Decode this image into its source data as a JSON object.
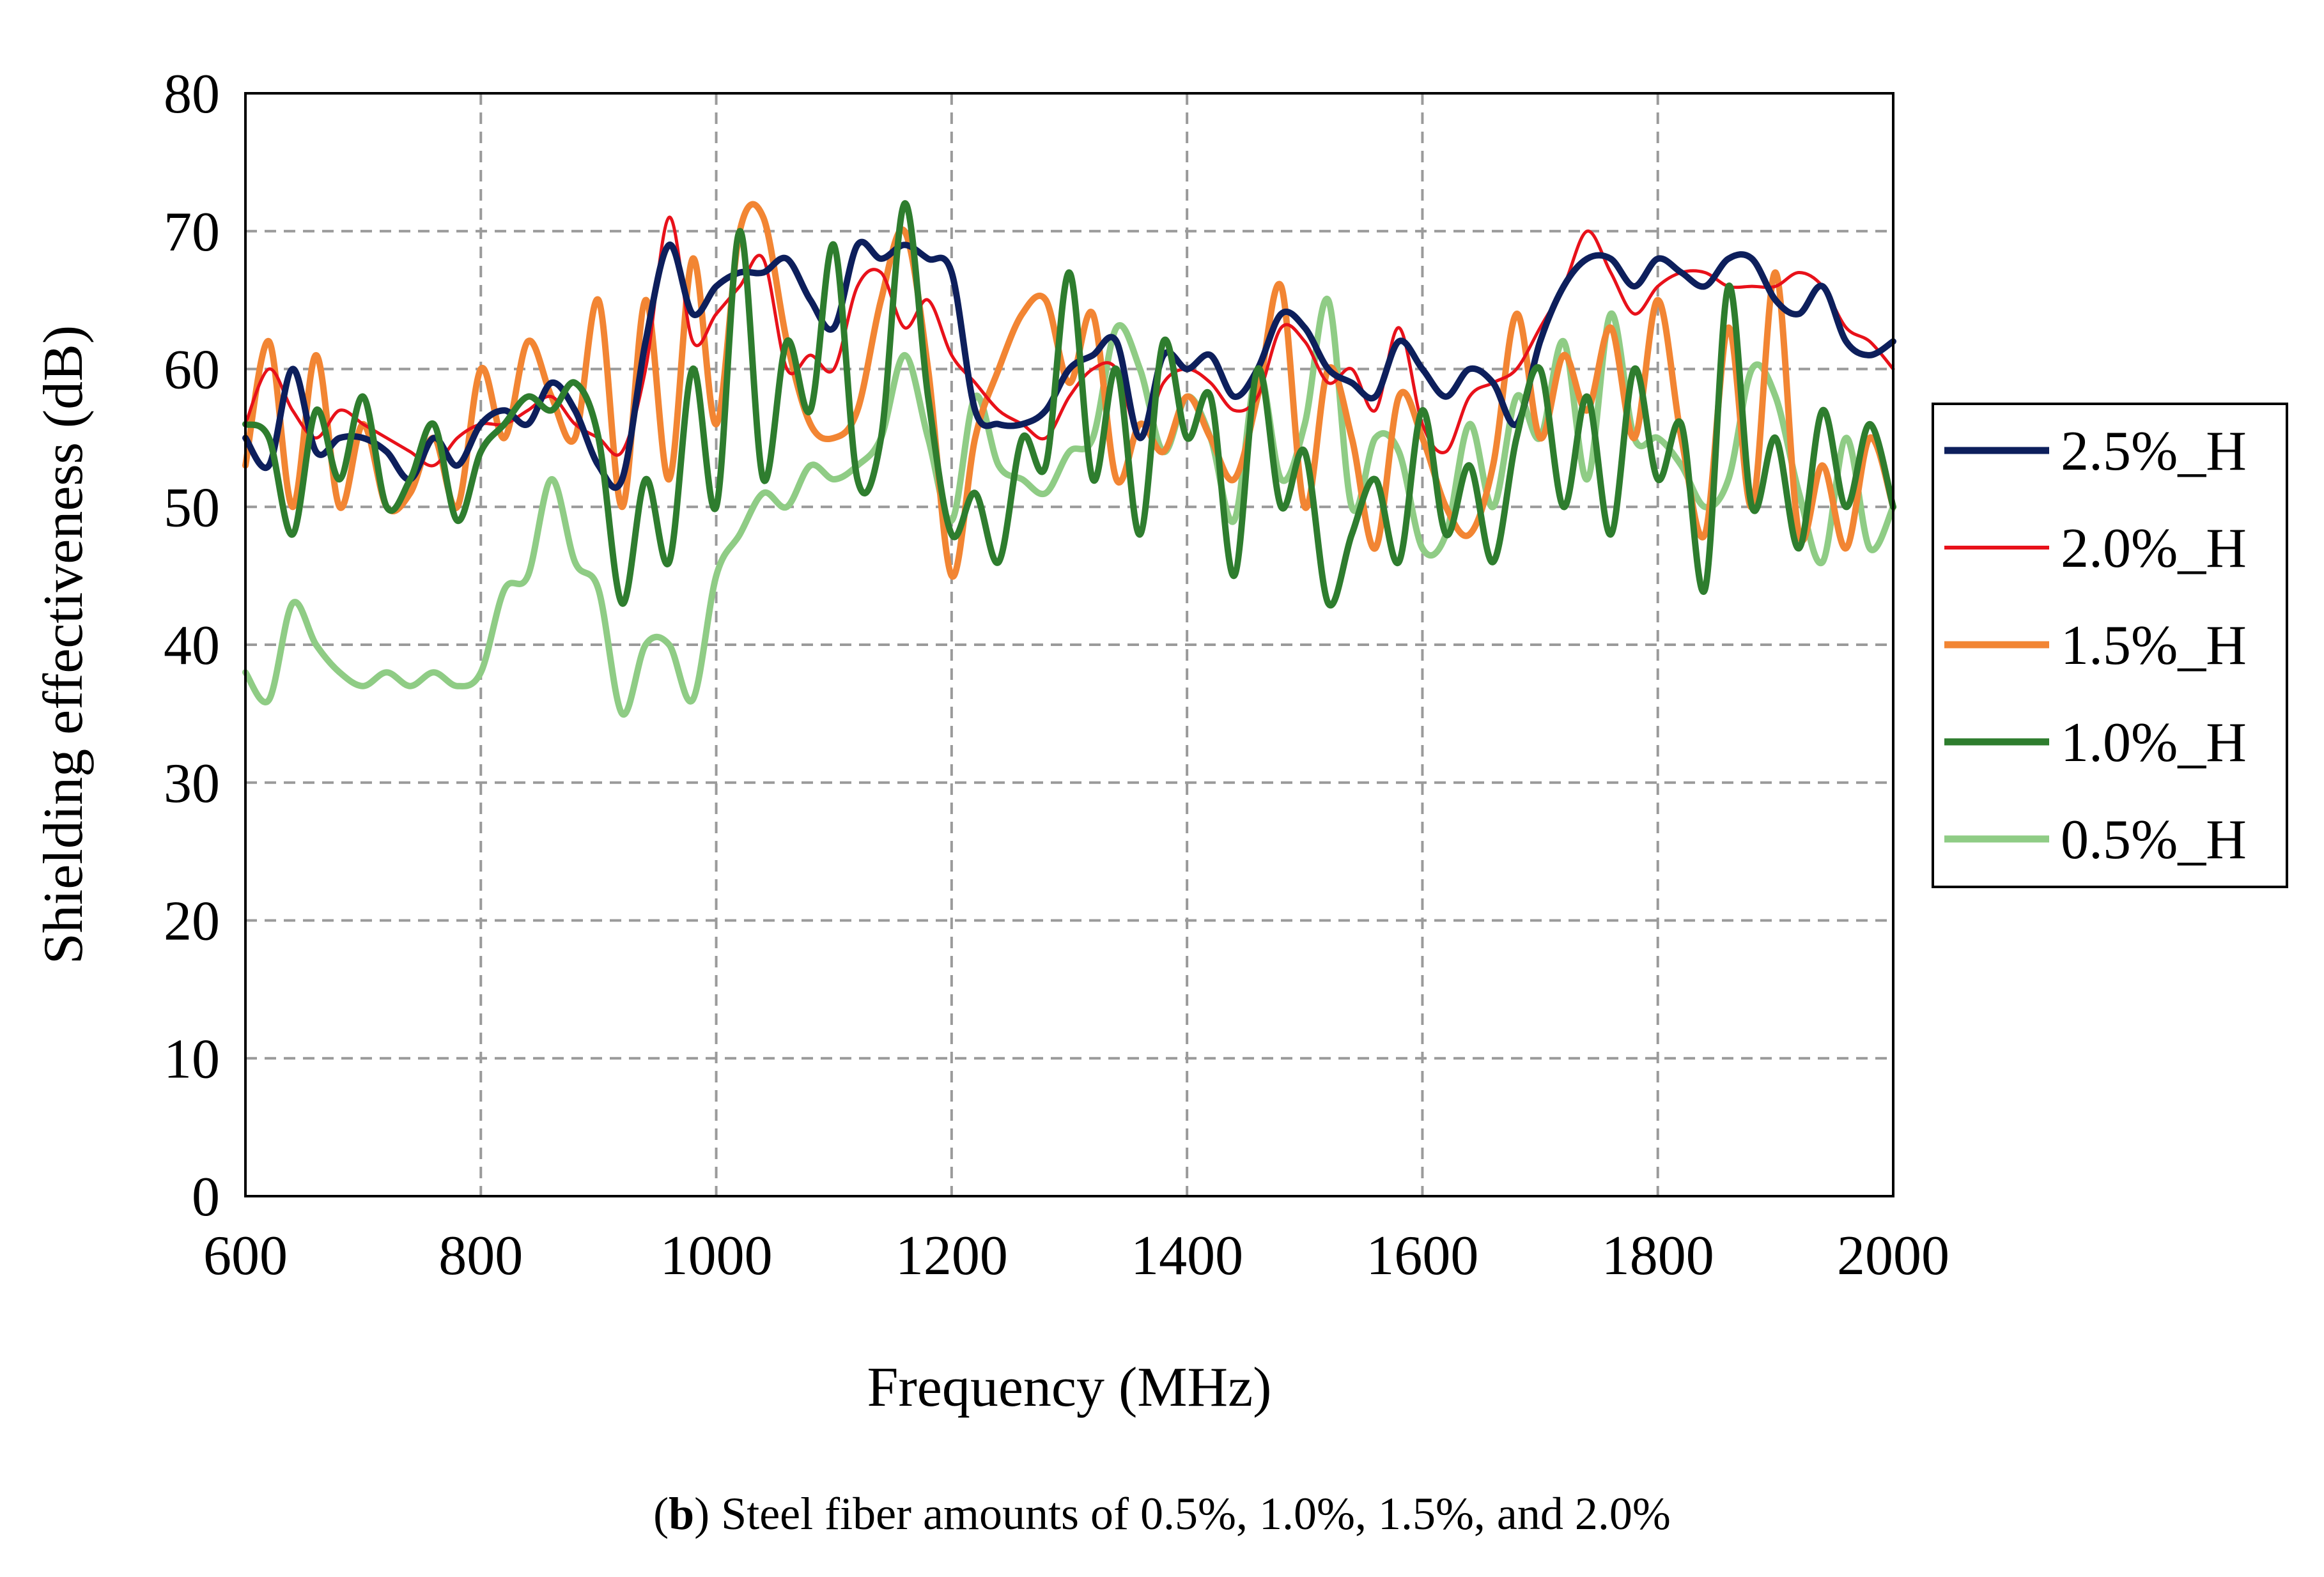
{
  "chart_data": {
    "type": "line",
    "title": "",
    "xlabel": "Frequency (MHz)",
    "ylabel": "Shielding effectiveness (dB)",
    "xlim": [
      600,
      2000
    ],
    "ylim": [
      0,
      80
    ],
    "x_ticks": [
      600,
      800,
      1000,
      1200,
      1400,
      1600,
      1800,
      2000
    ],
    "y_ticks": [
      0,
      10,
      20,
      30,
      40,
      50,
      60,
      70,
      80
    ],
    "x_tick_labels": [
      "600",
      "800",
      "1000",
      "1200",
      "1400",
      "1600",
      "1800",
      "2000"
    ],
    "y_tick_labels": [
      "0",
      "10",
      "20",
      "30",
      "40",
      "50",
      "60",
      "70",
      "80"
    ],
    "grid": true,
    "legend_position": "right",
    "x": [
      600,
      620,
      640,
      660,
      680,
      700,
      720,
      740,
      760,
      780,
      800,
      820,
      840,
      860,
      880,
      900,
      920,
      940,
      960,
      980,
      1000,
      1020,
      1040,
      1060,
      1080,
      1100,
      1120,
      1140,
      1160,
      1180,
      1200,
      1220,
      1240,
      1260,
      1280,
      1300,
      1320,
      1340,
      1360,
      1380,
      1400,
      1420,
      1440,
      1460,
      1480,
      1500,
      1520,
      1540,
      1560,
      1580,
      1600,
      1620,
      1640,
      1660,
      1680,
      1700,
      1720,
      1740,
      1760,
      1780,
      1800,
      1820,
      1840,
      1860,
      1880,
      1900,
      1920,
      1940,
      1960,
      1980,
      2000
    ],
    "series": [
      {
        "name": "2.5%_H",
        "color": "#0d1f5c",
        "values": [
          55,
          53,
          60,
          54,
          55,
          55,
          54,
          52,
          55,
          53,
          56,
          57,
          56,
          59,
          57,
          53,
          52,
          62,
          69,
          64,
          66,
          67,
          67,
          68,
          65,
          63,
          69,
          68,
          69,
          68,
          67,
          57,
          56,
          56,
          57,
          60,
          61,
          62,
          55,
          61,
          60,
          61,
          58,
          60,
          64,
          63,
          60,
          59,
          58,
          62,
          60,
          58,
          60,
          59,
          56,
          62,
          66,
          68,
          68,
          66,
          68,
          67,
          66,
          68,
          68,
          65,
          64,
          66,
          62,
          61,
          62
        ]
      },
      {
        "name": "2.0%_H",
        "color": "#e8111a",
        "values": [
          56,
          60,
          57,
          55,
          57,
          56,
          55,
          54,
          53,
          55,
          56,
          56,
          57,
          58,
          56,
          55,
          54,
          60,
          71,
          62,
          64,
          66,
          68,
          60,
          61,
          60,
          66,
          67,
          63,
          65,
          61,
          59,
          57,
          56,
          55,
          58,
          60,
          60,
          55,
          59,
          60,
          59,
          57,
          58,
          63,
          62,
          59,
          60,
          57,
          63,
          56,
          54,
          58,
          59,
          60,
          63,
          66,
          70,
          67,
          64,
          66,
          67,
          67,
          66,
          66,
          66,
          67,
          66,
          63,
          62,
          60
        ]
      },
      {
        "name": "1.5%_H",
        "color": "#f28533",
        "values": [
          53,
          62,
          50,
          61,
          50,
          56,
          50,
          51,
          55,
          50,
          60,
          55,
          62,
          58,
          55,
          65,
          50,
          65,
          52,
          68,
          56,
          70,
          71,
          62,
          56,
          55,
          57,
          65,
          70,
          60,
          45,
          55,
          60,
          64,
          65,
          59,
          64,
          52,
          56,
          54,
          58,
          55,
          52,
          58,
          66,
          50,
          60,
          55,
          47,
          58,
          55,
          50,
          48,
          53,
          64,
          55,
          61,
          57,
          63,
          55,
          65,
          55,
          48,
          63,
          50,
          67,
          48,
          53,
          47,
          55,
          50
        ]
      },
      {
        "name": "1.0%_H",
        "color": "#2e7d2e",
        "values": [
          56,
          55,
          48,
          57,
          52,
          58,
          50,
          52,
          56,
          49,
          54,
          56,
          58,
          57,
          59,
          55,
          43,
          52,
          46,
          60,
          50,
          70,
          52,
          62,
          57,
          69,
          52,
          55,
          72,
          58,
          48,
          51,
          46,
          55,
          53,
          67,
          52,
          60,
          48,
          62,
          55,
          58,
          45,
          60,
          50,
          54,
          43,
          48,
          52,
          46,
          57,
          48,
          53,
          46,
          55,
          60,
          50,
          58,
          48,
          60,
          52,
          56,
          44,
          66,
          50,
          55,
          47,
          57,
          50,
          56,
          50
        ]
      },
      {
        "name": "0.5%_H",
        "color": "#8fcc85",
        "values": [
          38,
          36,
          43,
          40,
          38,
          37,
          38,
          37,
          38,
          37,
          38,
          44,
          45,
          52,
          46,
          44,
          35,
          40,
          40,
          36,
          45,
          48,
          51,
          50,
          53,
          52,
          53,
          55,
          61,
          55,
          49,
          58,
          53,
          52,
          51,
          54,
          55,
          63,
          60,
          54,
          58,
          55,
          49,
          60,
          52,
          56,
          65,
          50,
          55,
          54,
          47,
          48,
          56,
          50,
          58,
          55,
          62,
          52,
          64,
          55,
          55,
          53,
          50,
          52,
          60,
          58,
          51,
          46,
          55,
          47,
          50
        ]
      }
    ]
  },
  "caption": {
    "open": "(",
    "panel": "b",
    "text": ") Steel fiber amounts of 0.5%, 1.0%, 1.5%, and 2.0%"
  }
}
